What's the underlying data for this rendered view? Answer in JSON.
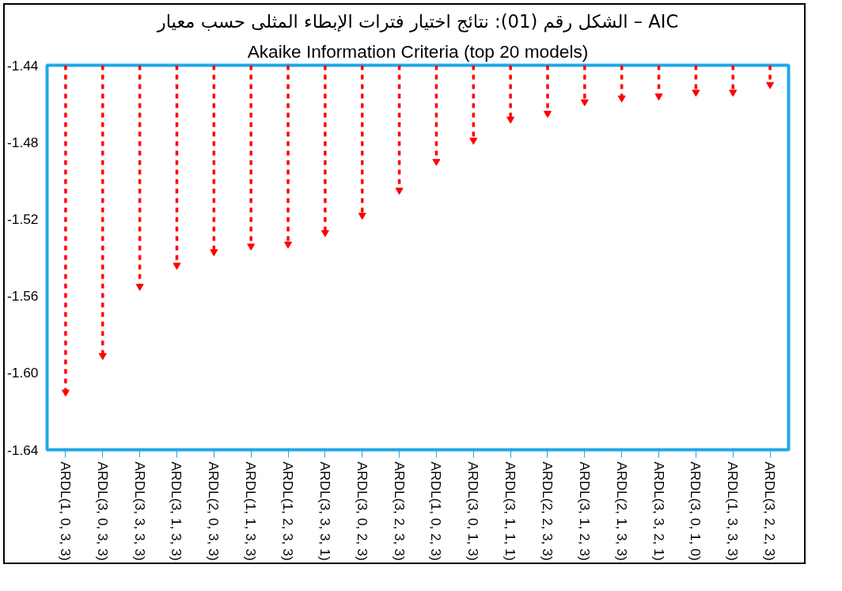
{
  "chart_data": {
    "type": "lollipop",
    "title": "الشكل رقم (01): نتائج اختيار فترات الإبطاء المثلى حسب معيار – AIC",
    "subtitle": "Akaike Information Criteria (top 20 models)",
    "categories": [
      "ARDL(1, 0, 3, 3)",
      "ARDL(3, 0, 3, 3)",
      "ARDL(3, 3, 3, 3)",
      "ARDL(3, 1, 3, 3)",
      "ARDL(2, 0, 3, 3)",
      "ARDL(1, 1, 3, 3)",
      "ARDL(1, 2, 3, 3)",
      "ARDL(3, 3, 3, 1)",
      "ARDL(3, 0, 2, 3)",
      "ARDL(3, 2, 3, 3)",
      "ARDL(1, 0, 2, 3)",
      "ARDL(3, 0, 1, 3)",
      "ARDL(3, 1, 1, 1)",
      "ARDL(2, 2, 3, 3)",
      "ARDL(3, 1, 2, 3)",
      "ARDL(2, 1, 3, 3)",
      "ARDL(3, 3, 2, 1)",
      "ARDL(3, 0, 1, 0)",
      "ARDL(1, 3, 3, 3)",
      "ARDL(3, 2, 2, 3)"
    ],
    "values": [
      -1.61,
      -1.591,
      -1.555,
      -1.544,
      -1.537,
      -1.534,
      -1.533,
      -1.527,
      -1.518,
      -1.505,
      -1.49,
      -1.479,
      -1.468,
      -1.465,
      -1.459,
      -1.457,
      -1.456,
      -1.454,
      -1.454,
      -1.45
    ],
    "color": "#ff0000",
    "marker": "triangle",
    "line_style": "dashed",
    "ylim": [
      -1.64,
      -1.44
    ],
    "yticks": [
      {
        "value": -1.64,
        "label": "-1.64"
      },
      {
        "value": -1.6,
        "label": "-1.60"
      },
      {
        "value": -1.56,
        "label": "-1.56"
      },
      {
        "value": -1.52,
        "label": "-1.52"
      },
      {
        "value": -1.48,
        "label": "-1.48"
      },
      {
        "value": -1.44,
        "label": "-1.44"
      }
    ]
  }
}
